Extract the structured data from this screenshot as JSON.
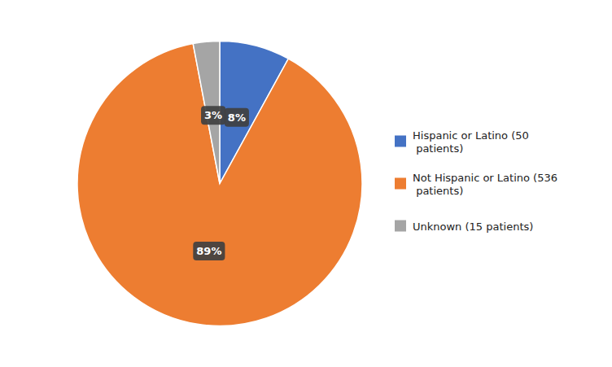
{
  "chart_data": {
    "type": "pie",
    "categories": [
      "Hispanic or Latino (50\n patients)",
      "Not Hispanic or Latino (536\n patients)",
      "Unknown (15 patients)"
    ],
    "values": [
      8,
      89,
      3
    ],
    "value_labels": [
      "8%",
      "89%",
      "3%"
    ],
    "colors": [
      "#4472C4",
      "#ED7D31",
      "#A5A5A5"
    ],
    "data_labels": true,
    "legend": "right"
  }
}
